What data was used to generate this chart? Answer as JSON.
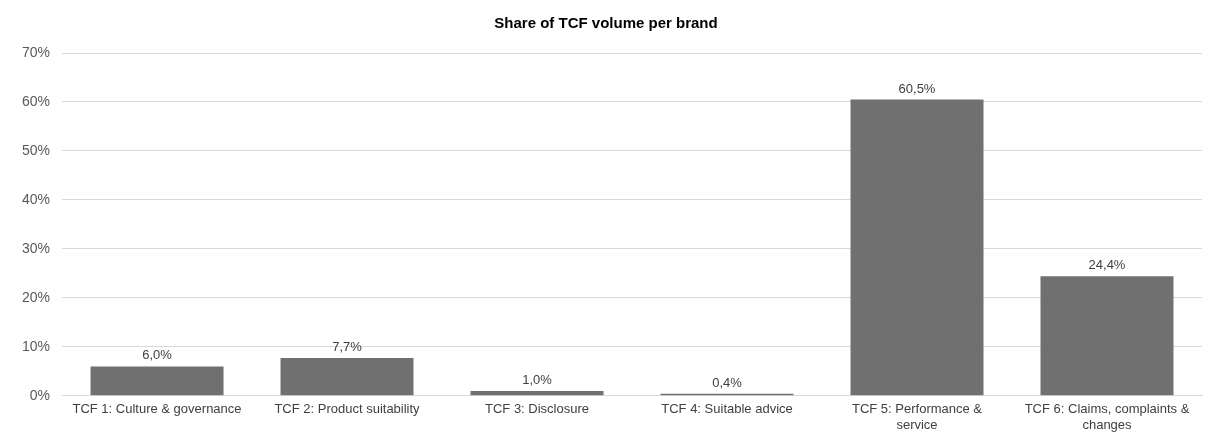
{
  "chart_data": {
    "type": "bar",
    "title": "Share of TCF volume per brand",
    "categories": [
      "TCF 1: Culture & governance",
      "TCF 2: Product suitability",
      "TCF 3: Disclosure",
      "TCF 4: Suitable advice",
      "TCF 5: Performance & service",
      "TCF 6: Claims, complaints & changes"
    ],
    "values": [
      6.0,
      7.7,
      1.0,
      0.4,
      60.5,
      24.4
    ],
    "value_labels": [
      "6,0%",
      "7,7%",
      "1,0%",
      "0,4%",
      "60,5%",
      "24,4%"
    ],
    "color": "#707070",
    "ylim": [
      0,
      70
    ],
    "yticks": [
      {
        "value": 0,
        "label": "0%"
      },
      {
        "value": 10,
        "label": "10%"
      },
      {
        "value": 20,
        "label": "20%"
      },
      {
        "value": 30,
        "label": "30%"
      },
      {
        "value": 40,
        "label": "40%"
      },
      {
        "value": 50,
        "label": "50%"
      },
      {
        "value": 60,
        "label": "60%"
      },
      {
        "value": 70,
        "label": "70%"
      }
    ],
    "grid": "y",
    "legend": false
  }
}
